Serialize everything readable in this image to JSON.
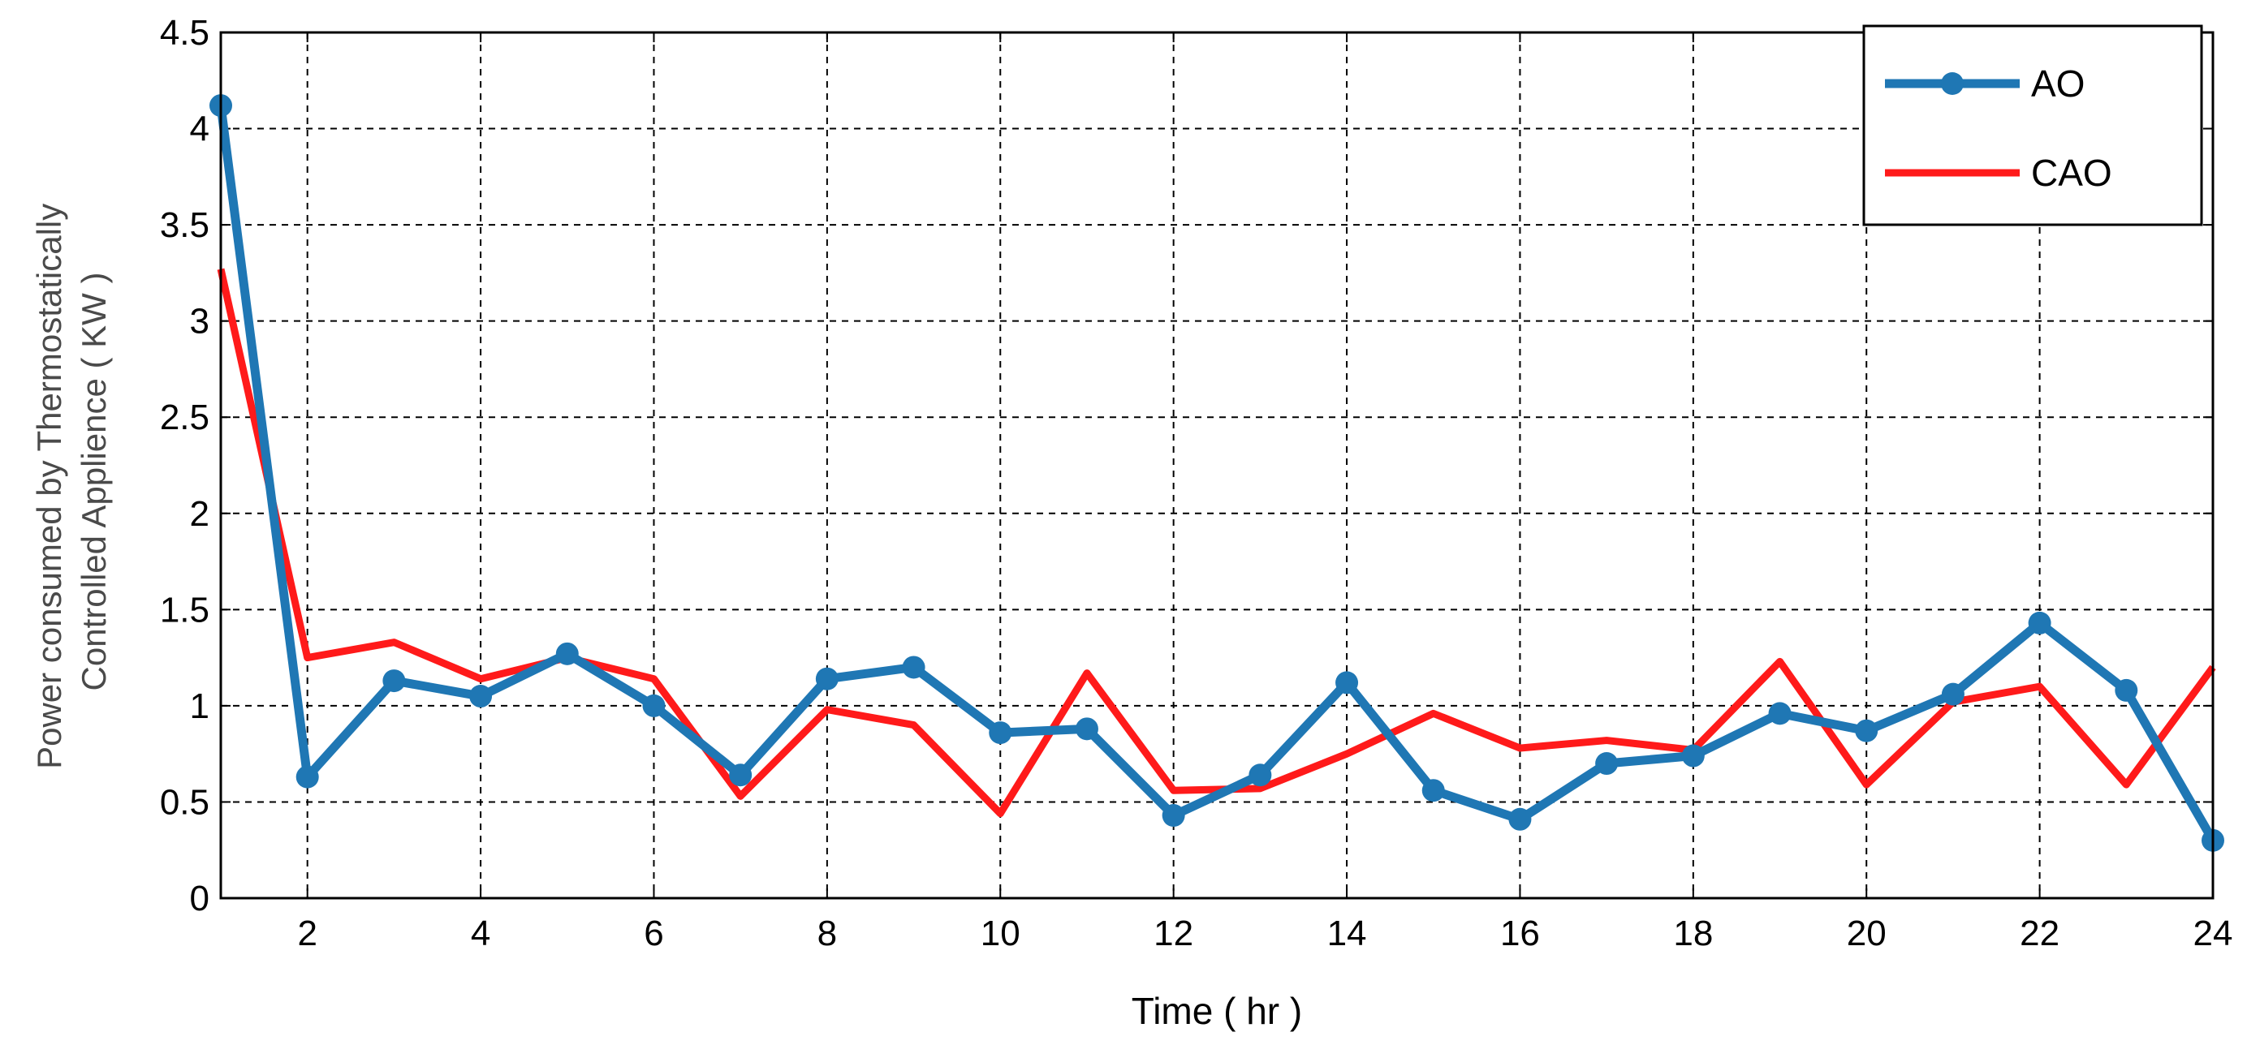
{
  "chart_data": {
    "type": "line",
    "title": "",
    "xlabel": "Time ( hr )",
    "ylabel_lines": [
      "Power consumed by Thermostatically",
      "Controlled Applience ( KW )"
    ],
    "xlim": [
      1,
      24
    ],
    "ylim": [
      0,
      4.5
    ],
    "xticks": [
      2,
      4,
      6,
      8,
      10,
      12,
      14,
      16,
      18,
      20,
      22,
      24
    ],
    "yticks": [
      0,
      0.5,
      1,
      1.5,
      2,
      2.5,
      3,
      3.5,
      4,
      4.5
    ],
    "ytick_labels": [
      "0",
      "0.5",
      "1",
      "1.5",
      "2",
      "2.5",
      "3",
      "3.5",
      "4",
      "4.5"
    ],
    "grid": true,
    "legend_position": "top-right",
    "x": [
      1,
      2,
      3,
      4,
      5,
      6,
      7,
      8,
      9,
      10,
      11,
      12,
      13,
      14,
      15,
      16,
      17,
      18,
      19,
      20,
      21,
      22,
      23,
      24
    ],
    "series": [
      {
        "name": "AO",
        "color": "#1f77b4",
        "marker": "circle",
        "values": [
          4.12,
          0.63,
          1.13,
          1.05,
          1.27,
          1.0,
          0.64,
          1.14,
          1.2,
          0.86,
          0.88,
          0.43,
          0.64,
          1.12,
          0.56,
          0.41,
          0.7,
          0.74,
          0.96,
          0.87,
          1.06,
          1.43,
          1.08,
          0.3
        ]
      },
      {
        "name": "CAO",
        "color": "#ff1a1a",
        "marker": "none",
        "values": [
          3.27,
          1.25,
          1.33,
          1.14,
          1.25,
          1.14,
          0.53,
          0.98,
          0.9,
          0.44,
          1.17,
          0.56,
          0.57,
          0.75,
          0.96,
          0.78,
          0.82,
          0.77,
          1.23,
          0.59,
          1.02,
          1.1,
          0.59,
          1.2
        ]
      }
    ]
  }
}
